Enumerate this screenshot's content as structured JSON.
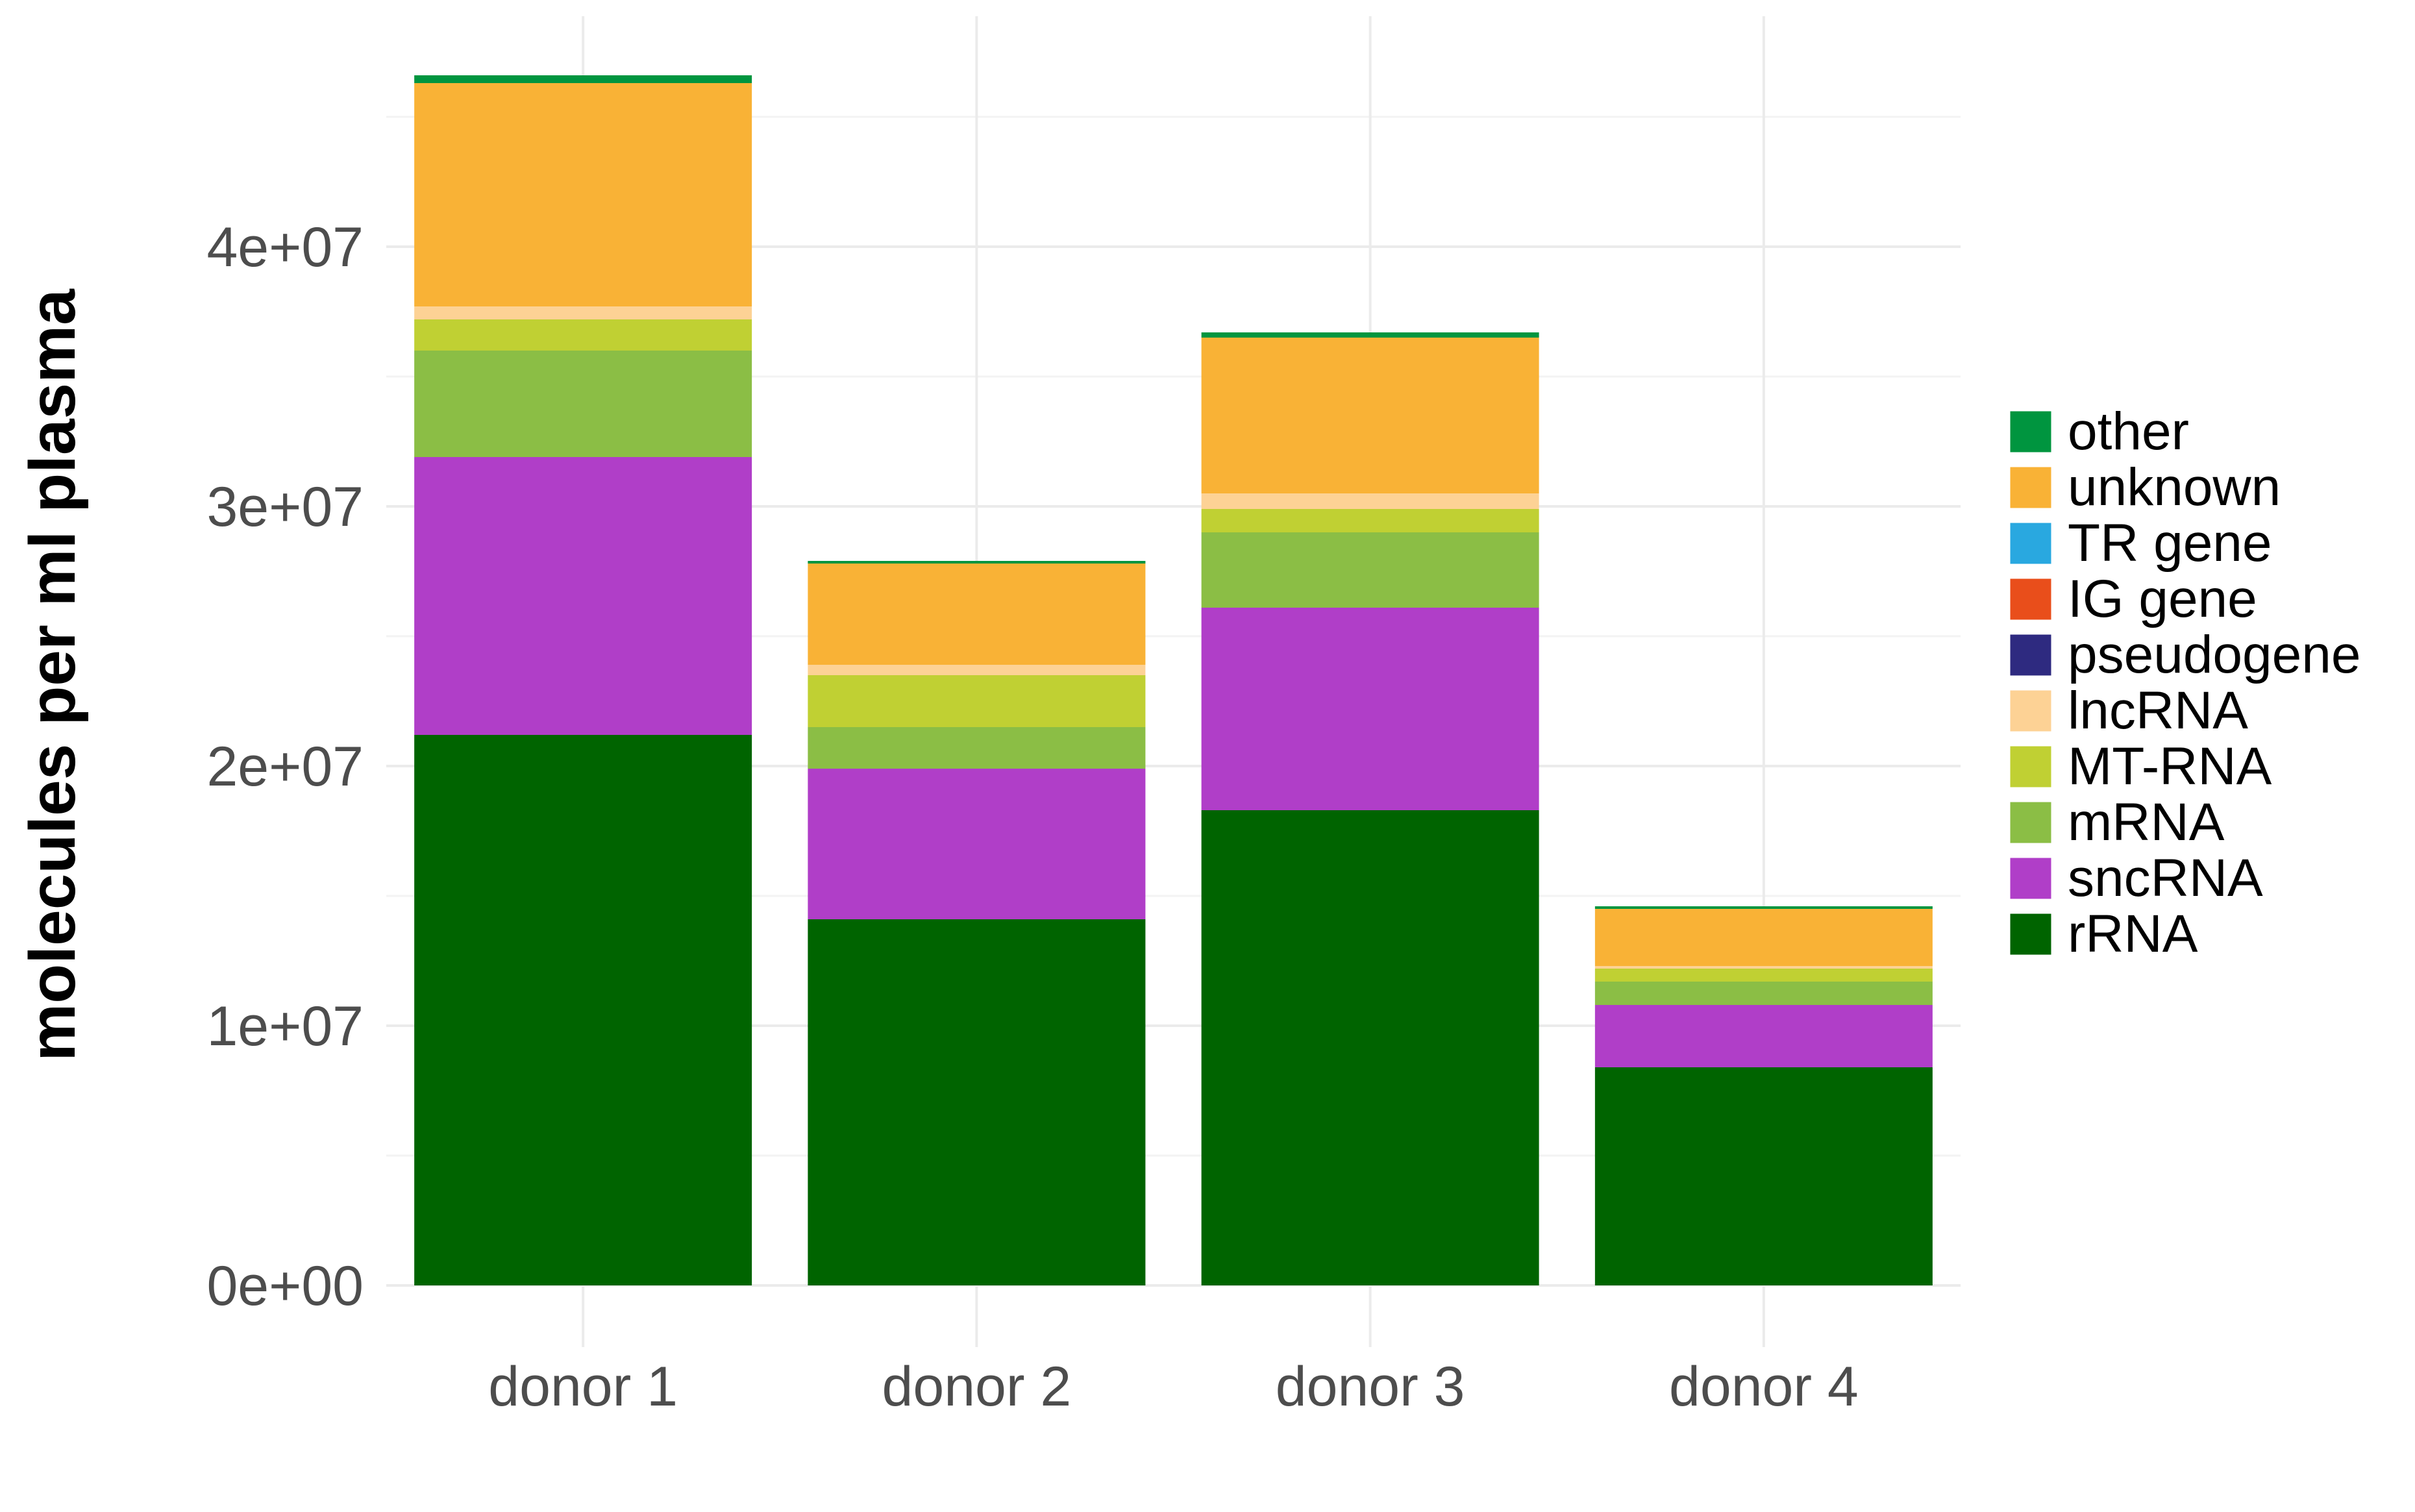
{
  "chart_data": {
    "type": "bar",
    "stacked": true,
    "title": "",
    "xlabel": "",
    "ylabel": "molecules per ml plasma",
    "categories": [
      "donor 1",
      "donor 2",
      "donor 3",
      "donor 4"
    ],
    "ylim": [
      0,
      48000000
    ],
    "yticks": [
      0,
      10000000,
      20000000,
      30000000,
      40000000
    ],
    "ytick_labels": [
      "0e+00",
      "1e+07",
      "2e+07",
      "3e+07",
      "4e+07"
    ],
    "grid": true,
    "legend_position": "right",
    "series": [
      {
        "name": "rRNA",
        "color": "#006400",
        "values": [
          21200000,
          14100000,
          18300000,
          8400000
        ]
      },
      {
        "name": "sncRNA",
        "color": "#b03ec8",
        "values": [
          10700000,
          5800000,
          7800000,
          2400000
        ]
      },
      {
        "name": "mRNA",
        "color": "#8bbe45",
        "values": [
          4100000,
          1600000,
          2900000,
          900000
        ]
      },
      {
        "name": "MT-RNA",
        "color": "#c0d033",
        "values": [
          1200000,
          2000000,
          900000,
          500000
        ]
      },
      {
        "name": "lncRNA",
        "color": "#fdd295",
        "values": [
          500000,
          400000,
          600000,
          100000
        ]
      },
      {
        "name": "pseudogene",
        "color": "#2e2a80",
        "values": [
          0,
          0,
          0,
          0
        ]
      },
      {
        "name": "IG gene",
        "color": "#e94e1b",
        "values": [
          0,
          0,
          0,
          0
        ]
      },
      {
        "name": "TR gene",
        "color": "#29a8e0",
        "values": [
          0,
          0,
          0,
          0
        ]
      },
      {
        "name": "unknown",
        "color": "#f9b236",
        "values": [
          8600000,
          3900000,
          6000000,
          2200000
        ]
      },
      {
        "name": "other",
        "color": "#00953f",
        "values": [
          300000,
          100000,
          200000,
          100000
        ]
      }
    ],
    "legend_order": [
      "other",
      "unknown",
      "TR gene",
      "IG gene",
      "pseudogene",
      "lncRNA",
      "MT-RNA",
      "mRNA",
      "sncRNA",
      "rRNA"
    ]
  }
}
